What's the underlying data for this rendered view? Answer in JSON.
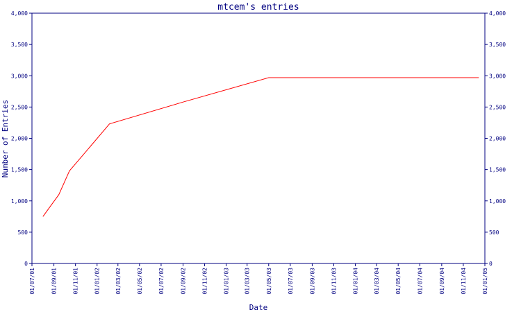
{
  "colors": {
    "axis": "#000080",
    "series": "#ff0000",
    "background": "#ffffff"
  },
  "chart_data": {
    "type": "line",
    "title": "mtcem's entries",
    "xlabel": "Date",
    "ylabel": "Number of Entries",
    "ylim": [
      0,
      4000
    ],
    "yticks": [
      "0",
      "500",
      "1,000",
      "1,500",
      "2,000",
      "2,500",
      "3,000",
      "3,500",
      "4,000"
    ],
    "ytick_values": [
      0,
      500,
      1000,
      1500,
      2000,
      2500,
      3000,
      3500,
      4000
    ],
    "xticks": [
      "01/07/01",
      "01/09/01",
      "01/11/01",
      "01/01/02",
      "01/03/02",
      "01/05/02",
      "01/07/02",
      "01/09/02",
      "01/11/02",
      "01/01/03",
      "01/03/03",
      "01/05/03",
      "01/07/03",
      "01/09/03",
      "01/11/03",
      "01/01/04",
      "01/03/04",
      "01/05/04",
      "01/07/04",
      "01/09/04",
      "01/11/04",
      "01/01/05"
    ],
    "xtick_dates": [
      "2001-07-01",
      "2001-09-01",
      "2001-11-01",
      "2002-01-01",
      "2002-03-01",
      "2002-05-01",
      "2002-07-01",
      "2002-09-01",
      "2002-11-01",
      "2003-01-01",
      "2003-03-01",
      "2003-05-01",
      "2003-07-01",
      "2003-09-01",
      "2003-11-01",
      "2004-01-01",
      "2004-03-01",
      "2004-05-01",
      "2004-07-01",
      "2004-09-01",
      "2004-11-01",
      "2005-01-01"
    ],
    "xlim": [
      "2001-07-01",
      "2005-01-01"
    ],
    "grid": false,
    "series": [
      {
        "color": "#ff0000",
        "points": [
          {
            "x": "2001-08-01",
            "y": 750
          },
          {
            "x": "2001-09-15",
            "y": 1100
          },
          {
            "x": "2001-10-15",
            "y": 1480
          },
          {
            "x": "2001-12-10",
            "y": 1850
          },
          {
            "x": "2002-02-05",
            "y": 2230
          },
          {
            "x": "2002-09-01",
            "y": 2580
          },
          {
            "x": "2003-05-01",
            "y": 2970
          },
          {
            "x": "2004-12-15",
            "y": 2970
          }
        ]
      }
    ]
  }
}
